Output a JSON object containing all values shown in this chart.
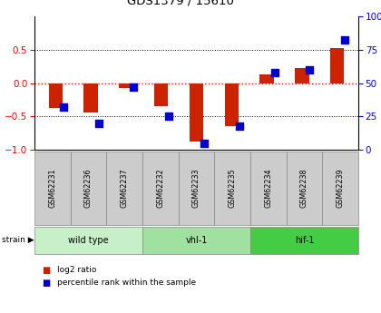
{
  "title": "GDS1379 / 15610",
  "samples": [
    "GSM62231",
    "GSM62236",
    "GSM62237",
    "GSM62232",
    "GSM62233",
    "GSM62235",
    "GSM62234",
    "GSM62238",
    "GSM62239"
  ],
  "log2_ratio": [
    -0.38,
    -0.44,
    -0.07,
    -0.35,
    -0.88,
    -0.65,
    0.13,
    0.22,
    0.52
  ],
  "percentile_rank": [
    32,
    20,
    47,
    25,
    5,
    18,
    58,
    60,
    82
  ],
  "groups": [
    {
      "label": "wild type",
      "start": 0,
      "end": 3,
      "color": "#c8f0c8"
    },
    {
      "label": "vhl-1",
      "start": 3,
      "end": 6,
      "color": "#a0e0a0"
    },
    {
      "label": "hif-1",
      "start": 6,
      "end": 9,
      "color": "#44cc44"
    }
  ],
  "ylim": [
    -1.0,
    1.0
  ],
  "yticks_left": [
    -1,
    -0.5,
    0,
    0.5
  ],
  "yticks_right": [
    0,
    25,
    50,
    75,
    100
  ],
  "bar_color": "#cc2200",
  "dot_color": "#0000cc",
  "bar_width": 0.4,
  "dot_size": 28,
  "bg_color": "#ffffff",
  "plot_bg": "#ffffff",
  "sample_box_color": "#cccccc",
  "sample_box_edge": "#888888"
}
